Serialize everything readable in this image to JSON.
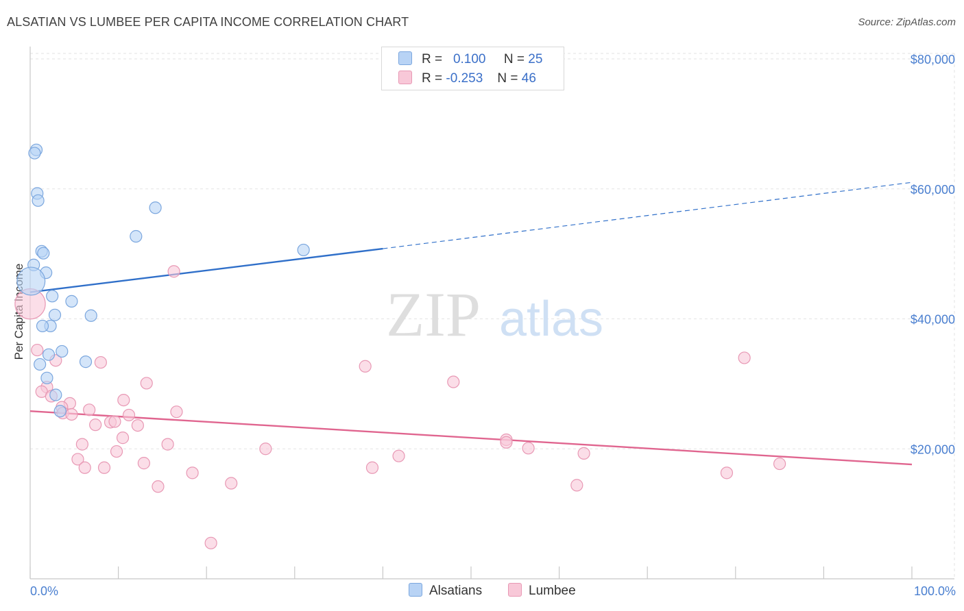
{
  "header": {
    "title": "ALSATIAN VS LUMBEE PER CAPITA INCOME CORRELATION CHART",
    "source": "Source: ZipAtlas.com"
  },
  "watermark": {
    "zip": "ZIP",
    "atlas": "atlas"
  },
  "legend": {
    "rows": [
      {
        "r_label": "R =",
        "r_value": "0.100",
        "n_label": "N =",
        "n_value": "25"
      },
      {
        "r_label": "R =",
        "r_value": "-0.253",
        "n_label": "N =",
        "n_value": "46"
      }
    ]
  },
  "bottom_legend": {
    "series_a": "Alsatians",
    "series_b": "Lumbee"
  },
  "colors": {
    "alsatian_fill": "#b8d3f5",
    "alsatian_stroke": "#7aa6de",
    "alsatian_line": "#2f6fc9",
    "lumbee_fill": "#f8c8d8",
    "lumbee_stroke": "#e898b4",
    "lumbee_line": "#e0658f",
    "grid": "#e3e3e3",
    "axis_text": "#4a7fd0"
  },
  "chart_data": {
    "type": "scatter",
    "title": "ALSATIAN VS LUMBEE PER CAPITA INCOME CORRELATION CHART",
    "ylabel": "Per Capita Income",
    "xlabel": "",
    "xlim": [
      0,
      100
    ],
    "ylim": [
      0,
      80000
    ],
    "x_tick_labels": [
      "0.0%",
      "100.0%"
    ],
    "y_ticks": [
      20000,
      40000,
      60000,
      80000
    ],
    "y_tick_labels": [
      "$20,000",
      "$40,000",
      "$60,000",
      "$80,000"
    ],
    "grid": true,
    "legend_position": "top-center",
    "series": [
      {
        "name": "Alsatians",
        "r": 0.1,
        "n": 25,
        "trend": {
          "x0": 0,
          "y0": 44100,
          "x1": 40,
          "y1": 50800,
          "dashed_to_x": 100,
          "dashed_y": 61000
        },
        "points": [
          [
            0.7,
            66000
          ],
          [
            0.5,
            65500
          ],
          [
            0.8,
            59300
          ],
          [
            0.9,
            58200
          ],
          [
            14.2,
            57100
          ],
          [
            12.0,
            52700
          ],
          [
            31.0,
            50600
          ],
          [
            1.3,
            50400
          ],
          [
            1.5,
            50100
          ],
          [
            0.4,
            48300
          ],
          [
            1.8,
            47100
          ],
          [
            0.1,
            45800
          ],
          [
            2.5,
            43500
          ],
          [
            4.7,
            42700
          ],
          [
            2.8,
            40600
          ],
          [
            6.9,
            40500
          ],
          [
            2.3,
            38900
          ],
          [
            1.4,
            38900
          ],
          [
            3.6,
            35000
          ],
          [
            2.1,
            34500
          ],
          [
            1.1,
            33000
          ],
          [
            6.3,
            33400
          ],
          [
            1.9,
            30900
          ],
          [
            2.9,
            28300
          ],
          [
            3.4,
            25800
          ]
        ],
        "sizes": [
          1,
          1,
          1,
          1,
          1,
          1,
          1,
          1,
          1,
          1,
          1,
          2.4,
          1,
          1,
          1,
          1,
          1,
          1,
          1,
          1,
          1,
          1,
          1,
          1,
          1
        ]
      },
      {
        "name": "Lumbee",
        "r": -0.253,
        "n": 46,
        "trend": {
          "x0": 0,
          "y0": 25800,
          "x1": 100,
          "y1": 17600
        },
        "points": [
          [
            0.0,
            42300
          ],
          [
            16.3,
            47300
          ],
          [
            0.8,
            35200
          ],
          [
            2.9,
            33600
          ],
          [
            8.0,
            33300
          ],
          [
            38.0,
            32700
          ],
          [
            81.0,
            34000
          ],
          [
            13.2,
            30100
          ],
          [
            48.0,
            30300
          ],
          [
            1.9,
            29500
          ],
          [
            1.3,
            28800
          ],
          [
            2.4,
            28100
          ],
          [
            10.6,
            27500
          ],
          [
            4.5,
            27000
          ],
          [
            3.6,
            26400
          ],
          [
            6.7,
            26000
          ],
          [
            16.6,
            25700
          ],
          [
            3.7,
            25500
          ],
          [
            4.7,
            25300
          ],
          [
            11.2,
            25200
          ],
          [
            9.1,
            24100
          ],
          [
            9.6,
            24200
          ],
          [
            7.4,
            23700
          ],
          [
            12.2,
            23600
          ],
          [
            10.5,
            21700
          ],
          [
            5.9,
            20700
          ],
          [
            15.6,
            20700
          ],
          [
            54.0,
            21400
          ],
          [
            54.0,
            21000
          ],
          [
            26.7,
            20000
          ],
          [
            56.5,
            20100
          ],
          [
            9.8,
            19600
          ],
          [
            62.8,
            19300
          ],
          [
            41.8,
            18900
          ],
          [
            5.4,
            18400
          ],
          [
            12.9,
            17800
          ],
          [
            85.0,
            17700
          ],
          [
            6.2,
            17100
          ],
          [
            8.4,
            17100
          ],
          [
            38.8,
            17100
          ],
          [
            18.4,
            16300
          ],
          [
            79.0,
            16300
          ],
          [
            22.8,
            14700
          ],
          [
            14.5,
            14200
          ],
          [
            62.0,
            14400
          ],
          [
            20.5,
            5500
          ]
        ],
        "sizes": [
          2.6,
          1,
          1,
          1,
          1,
          1,
          1,
          1,
          1,
          1,
          1,
          1,
          1,
          1,
          1,
          1,
          1,
          1,
          1,
          1,
          1,
          1,
          1,
          1,
          1,
          1,
          1,
          1,
          1,
          1,
          1,
          1,
          1,
          1,
          1,
          1,
          1,
          1,
          1,
          1,
          1,
          1,
          1,
          1,
          1,
          1
        ]
      }
    ]
  }
}
